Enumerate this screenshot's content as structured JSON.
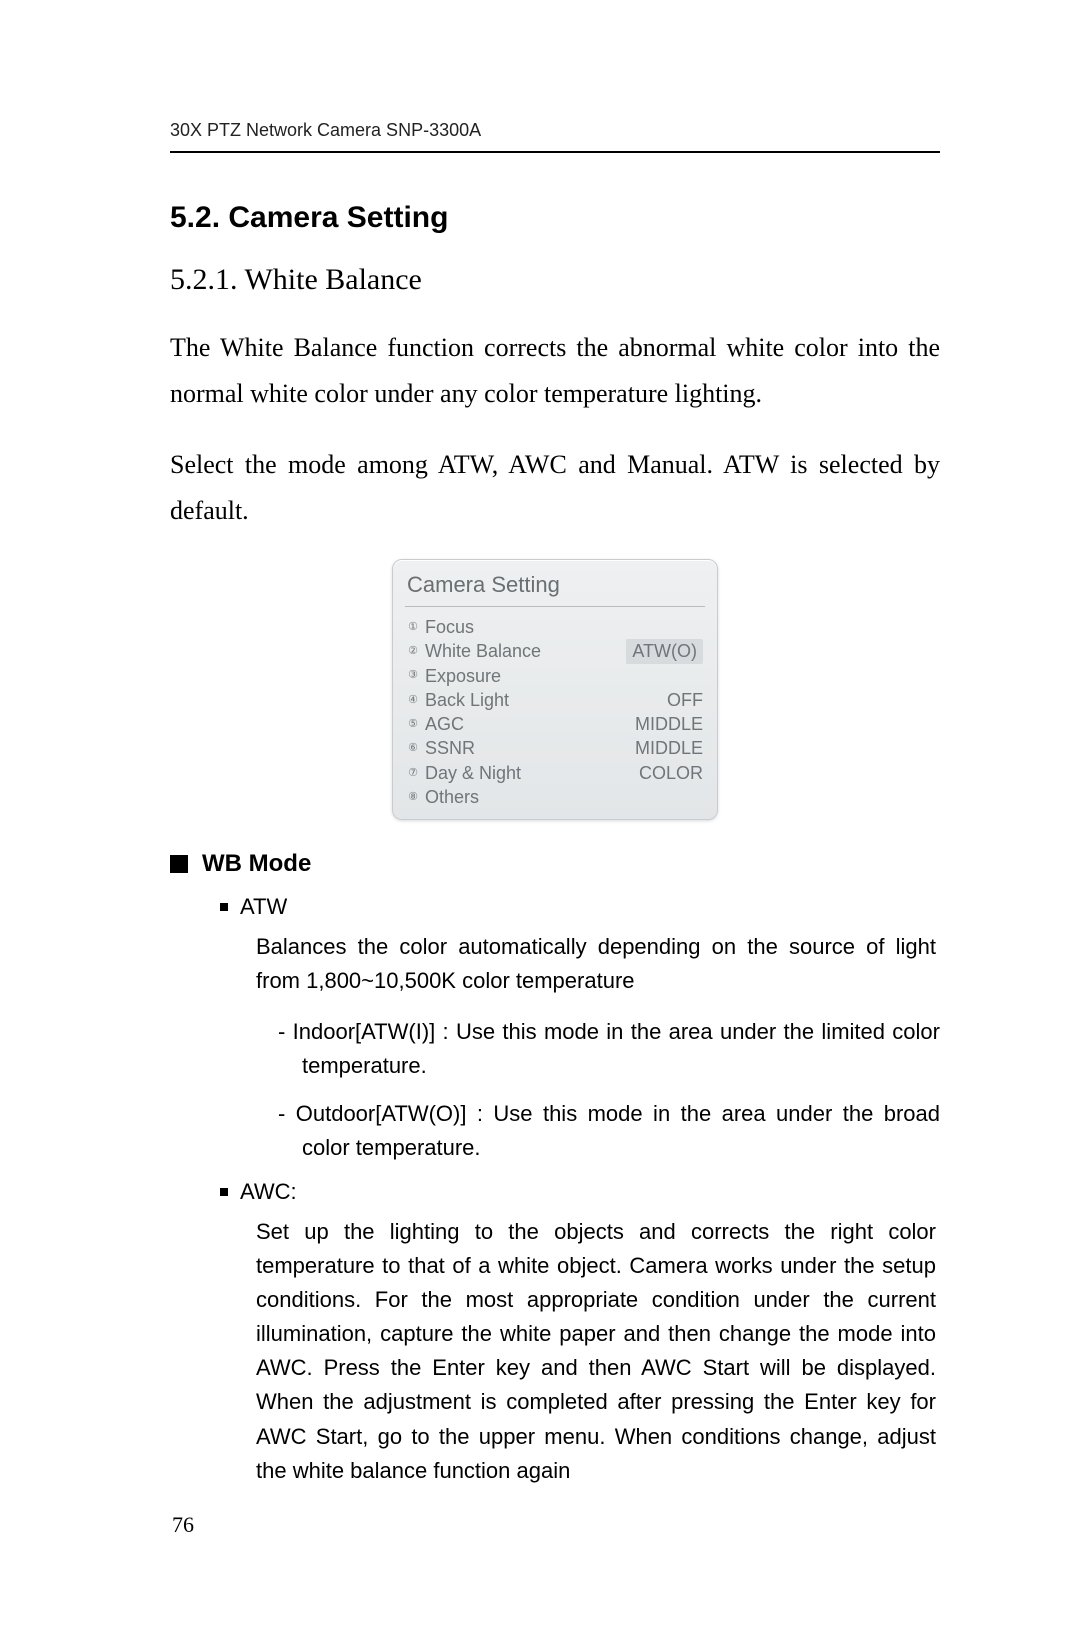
{
  "header": {
    "running": "30X PTZ Network Camera SNP-3300A"
  },
  "section": {
    "h2": "5.2. Camera Setting",
    "h3": "5.2.1. White Balance",
    "p1": "The White Balance function corrects the abnormal white color into the normal white color under any color temperature lighting.",
    "p2": "Select the mode among ATW, AWC and Manual. ATW is selected by default."
  },
  "panel": {
    "title": "Camera Setting",
    "rows": [
      {
        "n": "①",
        "label": "Focus",
        "value": ""
      },
      {
        "n": "②",
        "label": "White Balance",
        "value": "ATW(O)",
        "highlight": true
      },
      {
        "n": "③",
        "label": "Exposure",
        "value": ""
      },
      {
        "n": "④",
        "label": "Back Light",
        "value": "OFF"
      },
      {
        "n": "⑤",
        "label": "AGC",
        "value": "MIDDLE"
      },
      {
        "n": "⑥",
        "label": "SSNR",
        "value": "MIDDLE"
      },
      {
        "n": "⑦",
        "label": "Day & Night",
        "value": "COLOR"
      },
      {
        "n": "⑧",
        "label": "Others",
        "value": ""
      }
    ]
  },
  "wb": {
    "heading": "WB Mode",
    "atw": {
      "name": "ATW",
      "desc": "Balances the color automatically depending on the source of light from 1,800~10,500K color temperature",
      "indoor": "Indoor[ATW(I)] : Use this mode in the area under the limited color temperature.",
      "outdoor": "Outdoor[ATW(O)] : Use this mode in the area under the broad color temperature."
    },
    "awc": {
      "name": "AWC:",
      "desc": "Set up the lighting to the objects and corrects the right color temperature to that of a white object. Camera works under the setup conditions. For the most appropriate condition under the current illumination, capture the white paper and then change the mode into AWC. Press the Enter key and then AWC Start will be displayed. When the adjustment is completed after pressing the Enter key for AWC Start, go to the upper menu. When conditions change, adjust the white balance function again"
    }
  },
  "page_number": "76"
}
